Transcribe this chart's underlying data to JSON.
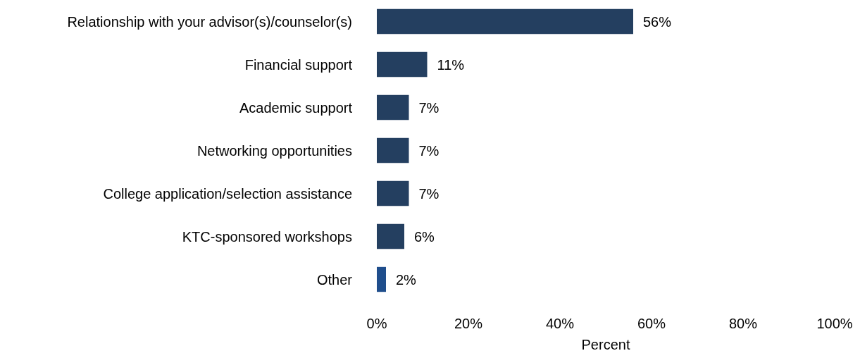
{
  "chart_data": {
    "type": "bar",
    "orientation": "horizontal",
    "categories": [
      "Relationship with your advisor(s)/counselor(s)",
      "Financial support",
      "Academic support",
      "Networking opportunities",
      "College application/selection assistance",
      "KTC-sponsored workshops",
      "Other"
    ],
    "values": [
      56,
      11,
      7,
      7,
      7,
      6,
      2
    ],
    "colors": [
      "#243f60",
      "#243f60",
      "#243f60",
      "#243f60",
      "#243f60",
      "#243f60",
      "#1f4e8c"
    ],
    "value_labels": [
      "56%",
      "11%",
      "7%",
      "7%",
      "7%",
      "6%",
      "2%"
    ],
    "xlabel": "Percent",
    "xlim": [
      0,
      100
    ],
    "xticks": [
      {
        "value": 0,
        "label": "0%"
      },
      {
        "value": 20,
        "label": "20%"
      },
      {
        "value": 40,
        "label": "40%"
      },
      {
        "value": 60,
        "label": "60%"
      },
      {
        "value": 80,
        "label": "80%"
      },
      {
        "value": 100,
        "label": "100%"
      }
    ],
    "grid": false
  }
}
